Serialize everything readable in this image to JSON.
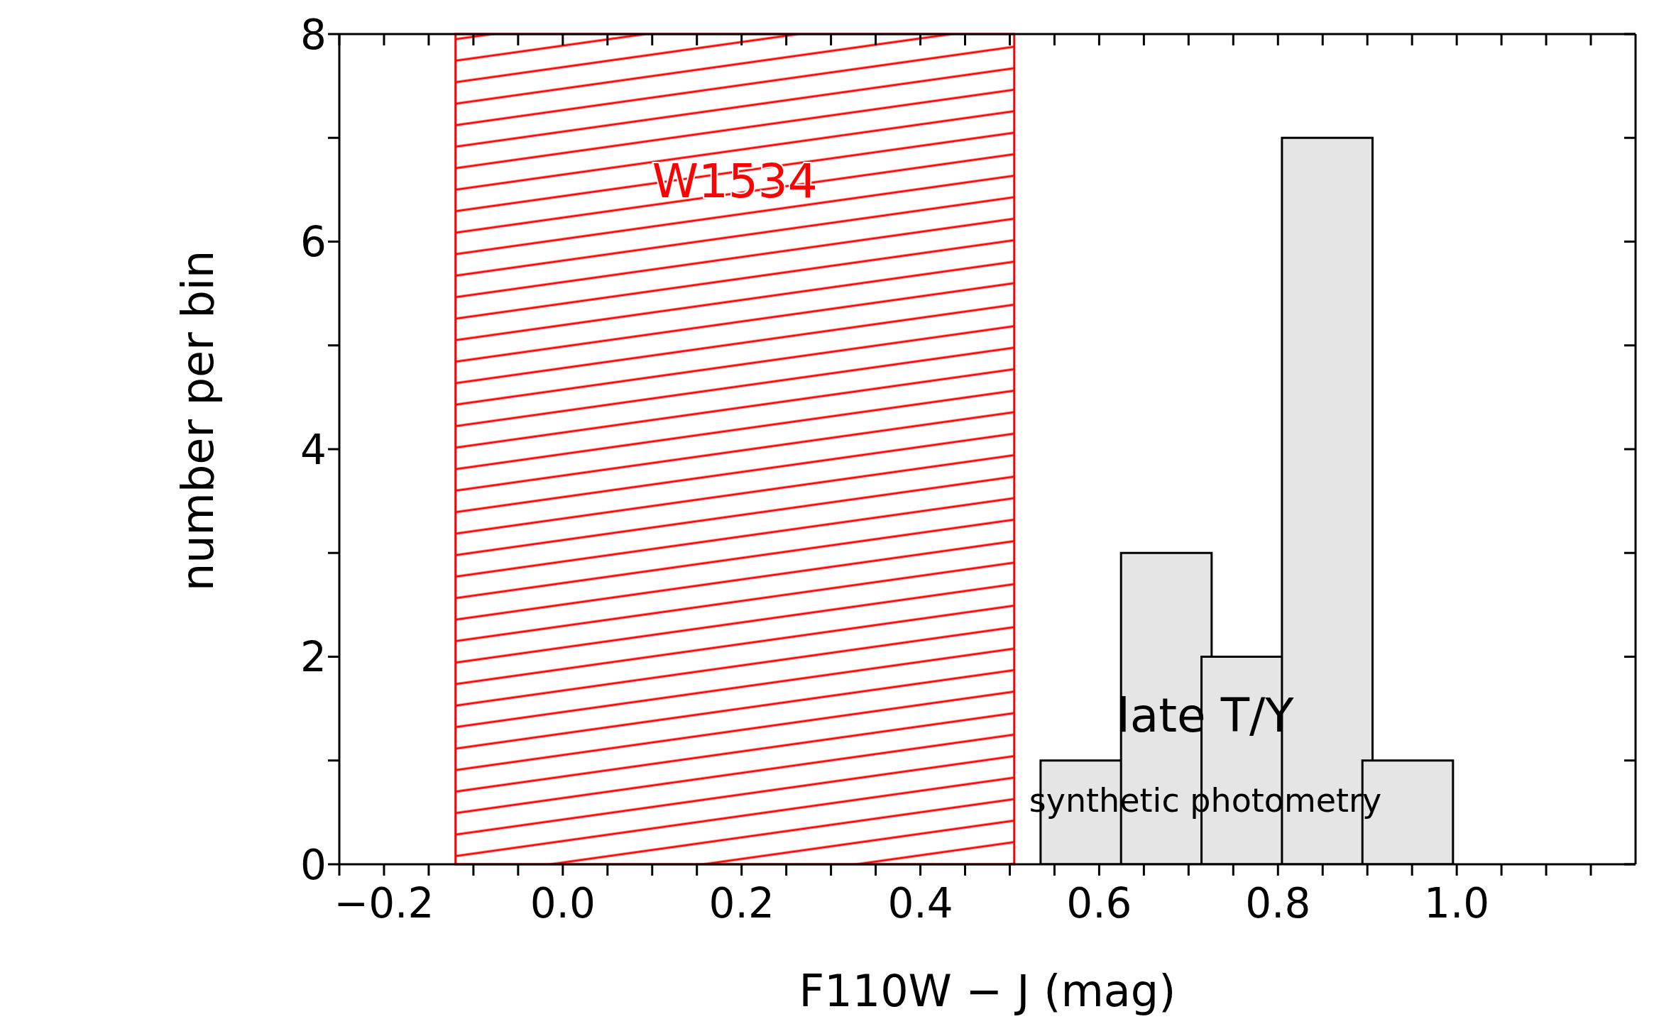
{
  "chart_data": {
    "type": "histogram",
    "xlabel": "F110W − J (mag)",
    "ylabel": "number per bin",
    "bins": [
      0.54,
      0.63,
      0.72,
      0.81,
      0.9,
      0.99
    ],
    "values": [
      1,
      3,
      2,
      7,
      1
    ],
    "color": "#e5e5e5",
    "xlim": [
      -0.25,
      1.2
    ],
    "ylim": [
      0,
      8
    ],
    "xticks": [
      {
        "value": -0.25,
        "label": null
      },
      {
        "value": -0.2,
        "label": "−0.2"
      },
      {
        "value": -0.15,
        "label": null
      },
      {
        "value": -0.1,
        "label": null
      },
      {
        "value": -0.05,
        "label": null
      },
      {
        "value": 0,
        "label": "0.0"
      },
      {
        "value": 0.05,
        "label": null
      },
      {
        "value": 0.1,
        "label": null
      },
      {
        "value": 0.15,
        "label": null
      },
      {
        "value": 0.2,
        "label": "0.2"
      },
      {
        "value": 0.25,
        "label": null
      },
      {
        "value": 0.3,
        "label": null
      },
      {
        "value": 0.35,
        "label": null
      },
      {
        "value": 0.4,
        "label": "0.4"
      },
      {
        "value": 0.45,
        "label": null
      },
      {
        "value": 0.5,
        "label": null
      },
      {
        "value": 0.55,
        "label": null
      },
      {
        "value": 0.6,
        "label": "0.6"
      },
      {
        "value": 0.65,
        "label": null
      },
      {
        "value": 0.7,
        "label": null
      },
      {
        "value": 0.75,
        "label": null
      },
      {
        "value": 0.8,
        "label": "0.8"
      },
      {
        "value": 0.85,
        "label": null
      },
      {
        "value": 0.9,
        "label": null
      },
      {
        "value": 0.95,
        "label": null
      },
      {
        "value": 1.0,
        "label": "1.0"
      },
      {
        "value": 1.05,
        "label": null
      },
      {
        "value": 1.1,
        "label": null
      },
      {
        "value": 1.15,
        "label": null
      }
    ],
    "yticks": [
      0,
      {
        "value": 1,
        "label": null
      },
      2,
      {
        "value": 3,
        "label": null
      },
      4,
      {
        "value": 5,
        "label": null
      },
      6,
      {
        "value": 7,
        "label": null
      },
      8
    ],
    "bands": [
      {
        "axis": "x",
        "from": -0.12,
        "to": 0.505,
        "label": "W1534",
        "color": "#ff0000"
      }
    ],
    "annotations": [
      "late T/Y",
      "synthetic photometry"
    ]
  }
}
